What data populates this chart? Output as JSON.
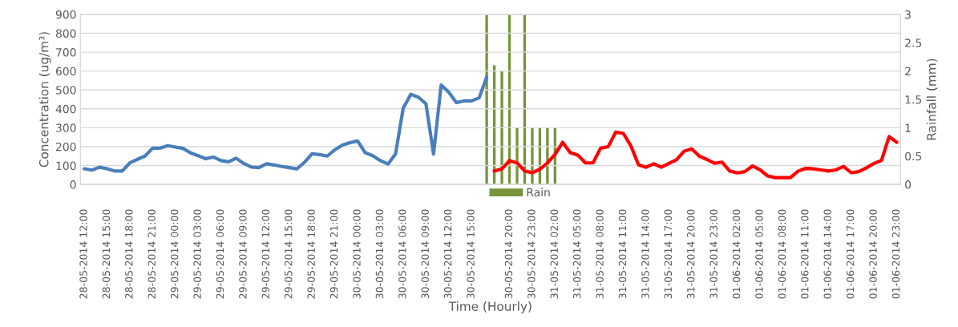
{
  "chart_data": {
    "type": "line",
    "xlabel": "Time (Hourly)",
    "ylabel": "Concentration (ug/m³)",
    "y2label": "Rainfall (mm)",
    "categories": [
      "28-05-2014 12:00",
      null,
      null,
      "28-05-2014 15:00",
      null,
      null,
      "28-05-2014 18:00",
      null,
      null,
      "28-05-2014 21:00",
      null,
      null,
      "29-05-2014 00:00",
      null,
      null,
      "29-05-2014 03:00",
      null,
      null,
      "29-05-2014 06:00",
      null,
      null,
      "29-05-2014 09:00",
      null,
      null,
      "29-05-2014 12:00",
      null,
      null,
      "29-05-2014 15:00",
      null,
      null,
      "29-05-2014 18:00",
      null,
      null,
      "29-05-2014 21:00",
      null,
      null,
      "30-05-2014 00:00",
      null,
      null,
      "30-05-2014 03:00",
      null,
      null,
      "30-05-2014 06:00",
      null,
      null,
      "30-05-2014 09:00",
      null,
      null,
      "30-05-2014 12:00",
      null,
      null,
      "30-05-2014 15:00",
      null,
      null,
      null,
      null,
      "30-05-2014 20:00",
      null,
      null,
      "30-05-2014 23:00",
      null,
      null,
      "31-05-2014 02:00",
      null,
      null,
      "31-05-2014 05:00",
      null,
      null,
      "31-05-2014 08:00",
      null,
      null,
      "31-05-2014 11:00",
      null,
      null,
      "31-05-2014 14:00",
      null,
      null,
      "31-05-2014 17:00",
      null,
      null,
      "31-05-2014 20:00",
      null,
      null,
      "31-05-2014 23:00",
      null,
      null,
      "01-06-2014 02:00",
      null,
      null,
      "01-06-2014 05:00",
      null,
      null,
      "01-06-2014 08:00",
      null,
      null,
      "01-06-2014 11:00",
      null,
      null,
      "01-06-2014 14:00",
      null,
      null,
      "01-06-2014 17:00",
      null,
      null,
      "01-06-2014 20:00",
      null,
      null,
      "01-06-2014 23:00"
    ],
    "ylim": [
      0,
      900
    ],
    "yticks": [
      0,
      100,
      200,
      300,
      400,
      500,
      600,
      700,
      800,
      900
    ],
    "y2lim": [
      0,
      3
    ],
    "y2ticks": [
      0,
      0.5,
      1,
      1.5,
      2,
      2.5,
      3
    ],
    "grid": "y",
    "legend": "bottom",
    "series": [
      {
        "color": "#4a7ebb",
        "values": [
          83,
          76,
          91,
          83,
          71,
          71,
          114,
          133,
          150,
          192,
          192,
          205,
          198,
          191,
          167,
          152,
          136,
          145,
          126,
          120,
          139,
          111,
          92,
          89,
          109,
          103,
          95,
          89,
          82,
          117,
          162,
          158,
          150,
          183,
          208,
          221,
          230,
          168,
          152,
          126,
          108,
          162,
          403,
          477,
          462,
          427,
          161,
          526,
          488,
          433,
          442,
          442,
          458,
          568,
          null,
          null,
          null,
          null,
          null,
          null,
          null,
          null,
          null,
          null,
          null,
          null,
          null,
          null,
          null,
          null,
          null,
          null,
          null,
          null,
          null,
          null,
          null,
          null,
          null,
          null,
          null,
          null,
          null,
          null,
          null,
          null,
          null,
          null,
          null,
          null,
          null,
          null,
          null,
          null,
          null,
          null,
          null,
          null,
          null,
          null,
          null,
          null,
          null,
          null,
          null,
          null,
          null,
          null
        ]
      },
      {
        "color": "#ff0000",
        "values": [
          null,
          null,
          null,
          null,
          null,
          null,
          null,
          null,
          null,
          null,
          null,
          null,
          null,
          null,
          null,
          null,
          null,
          null,
          null,
          null,
          null,
          null,
          null,
          null,
          null,
          null,
          null,
          null,
          null,
          null,
          null,
          null,
          null,
          null,
          null,
          null,
          null,
          null,
          null,
          null,
          null,
          null,
          null,
          null,
          null,
          null,
          null,
          null,
          null,
          null,
          null,
          null,
          null,
          null,
          71,
          82,
          126,
          114,
          71,
          62,
          80,
          114,
          159,
          223,
          168,
          155,
          114,
          114,
          192,
          200,
          277,
          270,
          203,
          103,
          91,
          109,
          91,
          111,
          130,
          176,
          188,
          150,
          132,
          112,
          118,
          71,
          61,
          68,
          98,
          77,
          45,
          36,
          36,
          36,
          70,
          85,
          83,
          77,
          71,
          77,
          95,
          62,
          68,
          88,
          111,
          127,
          253,
          223
        ]
      },
      {
        "type": "bar",
        "name": "Rain",
        "color": "#77933c",
        "axis": "y2",
        "values": [
          null,
          null,
          null,
          null,
          null,
          null,
          null,
          null,
          null,
          null,
          null,
          null,
          null,
          null,
          null,
          null,
          null,
          null,
          null,
          null,
          null,
          null,
          null,
          null,
          null,
          null,
          null,
          null,
          null,
          null,
          null,
          null,
          null,
          null,
          null,
          null,
          null,
          null,
          null,
          null,
          null,
          null,
          null,
          null,
          null,
          null,
          null,
          null,
          null,
          null,
          null,
          null,
          null,
          3,
          2.1,
          2,
          3,
          1,
          3,
          1,
          1,
          1,
          1,
          null,
          null,
          null,
          null,
          null,
          null,
          null,
          null,
          null,
          null,
          null,
          null,
          null,
          null,
          null,
          null,
          null,
          null,
          null,
          null,
          null,
          null,
          null,
          null,
          null,
          null,
          null,
          null,
          null,
          null,
          null,
          null,
          null,
          null,
          null,
          null,
          null,
          null,
          null,
          null,
          null,
          null,
          null,
          null,
          null
        ]
      }
    ]
  }
}
